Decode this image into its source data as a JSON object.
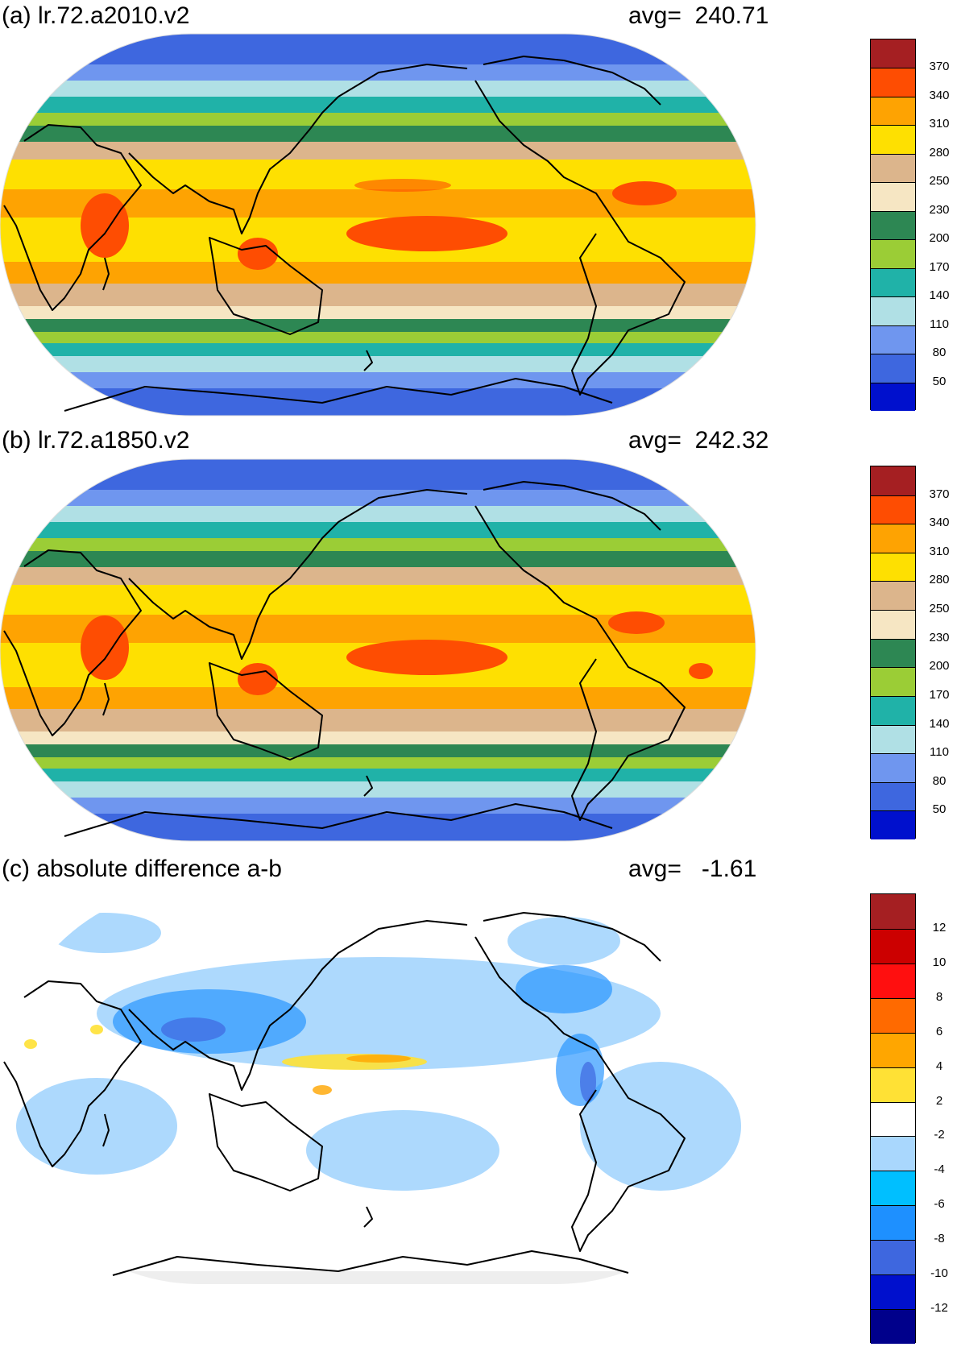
{
  "panels": [
    {
      "title": "(a) lr.72.a2010.v2",
      "avg_label": "avg=",
      "avg_value": "240.71",
      "colorbar": {
        "colors": [
          "#a51f22",
          "#fe4d02",
          "#fea302",
          "#fee001",
          "#dcb58c",
          "#f6e6c3",
          "#2d8753",
          "#9bcd36",
          "#20b2a8",
          "#b0e0e5",
          "#6f96ef",
          "#3e67df",
          "#0010cd"
        ],
        "labels": [
          "370",
          "340",
          "310",
          "280",
          "250",
          "230",
          "200",
          "170",
          "140",
          "110",
          "80",
          "50"
        ]
      }
    },
    {
      "title": "(b) lr.72.a1850.v2",
      "avg_label": "avg=",
      "avg_value": "242.32",
      "colorbar": {
        "colors": [
          "#a51f22",
          "#fe4d02",
          "#fea302",
          "#fee001",
          "#dcb58c",
          "#f6e6c3",
          "#2d8753",
          "#9bcd36",
          "#20b2a8",
          "#b0e0e5",
          "#6f96ef",
          "#3e67df",
          "#0010cd"
        ],
        "labels": [
          "370",
          "340",
          "310",
          "280",
          "250",
          "230",
          "200",
          "170",
          "140",
          "110",
          "80",
          "50"
        ]
      }
    },
    {
      "title": "(c) absolute difference a-b",
      "avg_label": "avg=",
      "avg_value": "-1.61",
      "colorbar": {
        "colors": [
          "#a51f22",
          "#cc0000",
          "#ff0f0f",
          "#ff6a00",
          "#ffa600",
          "#ffe135",
          "#ffffff",
          "#a9d7fd",
          "#00bfff",
          "#1e90ff",
          "#3e67df",
          "#0010cd",
          "#00008b"
        ],
        "labels": [
          "12",
          "10",
          "8",
          "6",
          "4",
          "2",
          "-2",
          "-4",
          "-6",
          "-8",
          "-10",
          "-12"
        ]
      }
    }
  ]
}
